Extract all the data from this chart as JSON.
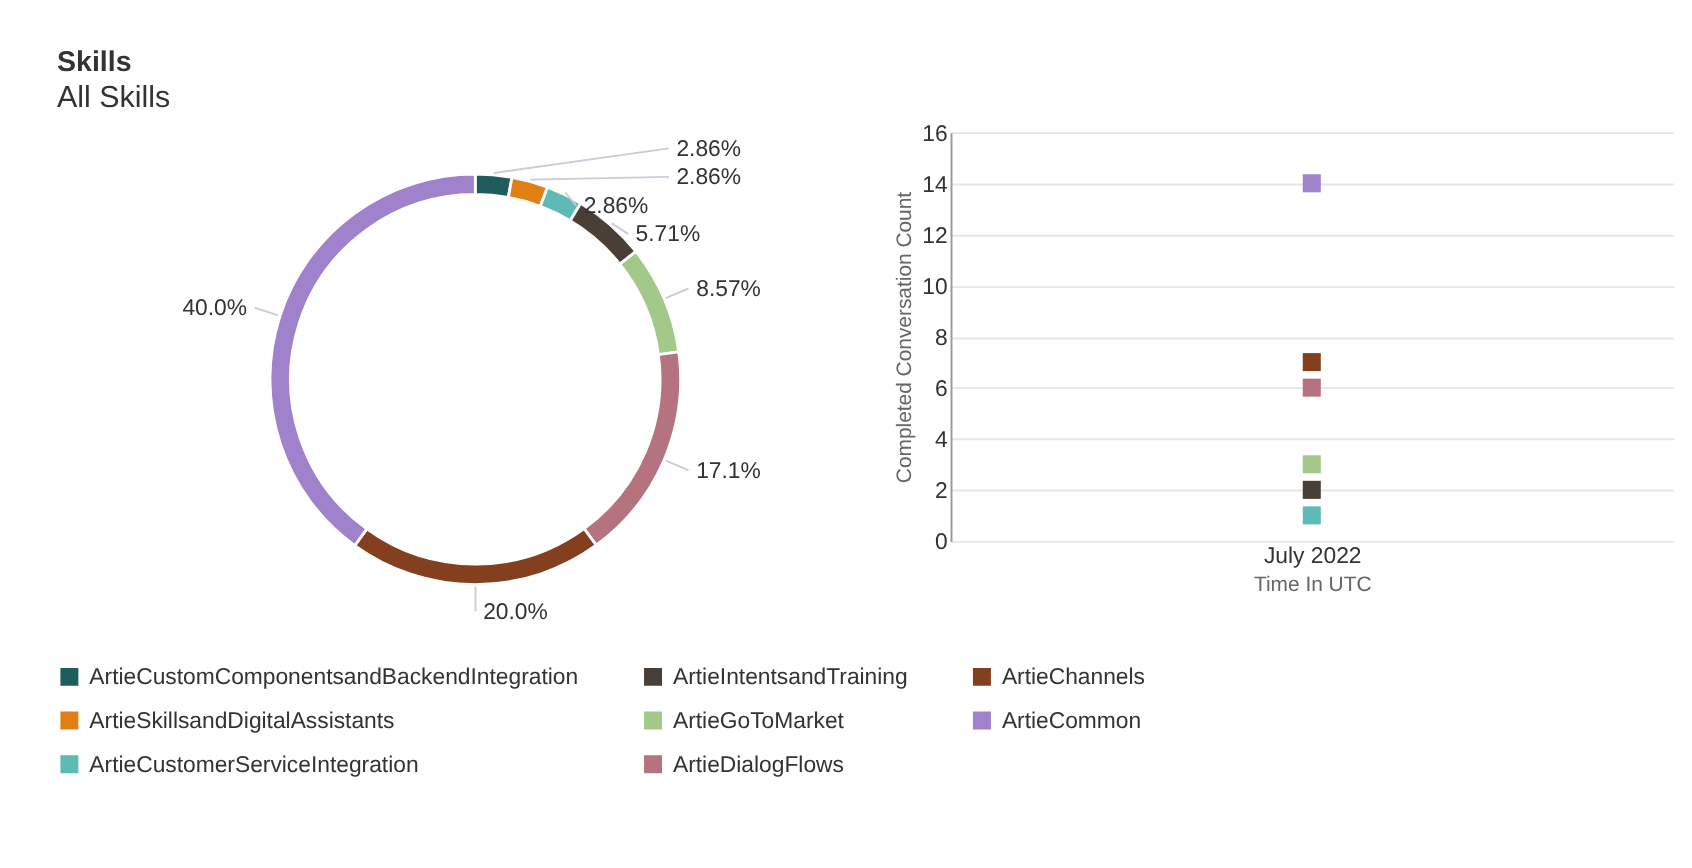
{
  "chart_data": [
    {
      "type": "donut",
      "title": "Skills",
      "subtitle": "All Skills",
      "categories": [
        "ArtieCustomComponentsandBackendIntegration",
        "ArtieSkillsandDigitalAssistants",
        "ArtieCustomerServiceIntegration",
        "ArtieIntentsandTraining",
        "ArtieGoToMarket",
        "ArtieDialogFlows",
        "ArtieChannels",
        "ArtieCommon"
      ],
      "values": [
        2.86,
        2.86,
        2.86,
        5.71,
        8.57,
        17.1,
        20.0,
        40.0
      ],
      "colors": [
        "#1f5c5e",
        "#e07f13",
        "#5dbab4",
        "#4a3f36",
        "#a2c98a",
        "#b5737f",
        "#84401e",
        "#9f81cc"
      ],
      "value_labels": [
        "2.86%",
        "2.86%",
        "2.86%",
        "5.71%",
        "8.57%",
        "17.1%",
        "20.0%",
        "40.0%"
      ],
      "legend": "bottom"
    },
    {
      "type": "scatter",
      "categories": [
        "July 2022"
      ],
      "xlabel": "Time In UTC",
      "ylabel": "Completed Conversation Count",
      "ylim": [
        0,
        16
      ],
      "yticks": [
        0,
        2,
        4,
        6,
        8,
        10,
        12,
        14,
        16
      ],
      "grid": "y",
      "marker": "square",
      "series": [
        {
          "color": "#1f5c5e",
          "values": [
            null
          ]
        },
        {
          "color": "#e07f13",
          "values": [
            null
          ]
        },
        {
          "color": "#5dbab4",
          "values": [
            1
          ]
        },
        {
          "color": "#4a3f36",
          "values": [
            2
          ]
        },
        {
          "color": "#a2c98a",
          "values": [
            3
          ]
        },
        {
          "color": "#b5737f",
          "values": [
            6
          ]
        },
        {
          "color": "#84401e",
          "values": [
            7
          ]
        },
        {
          "color": "#9f81cc",
          "values": [
            14
          ]
        }
      ]
    }
  ]
}
